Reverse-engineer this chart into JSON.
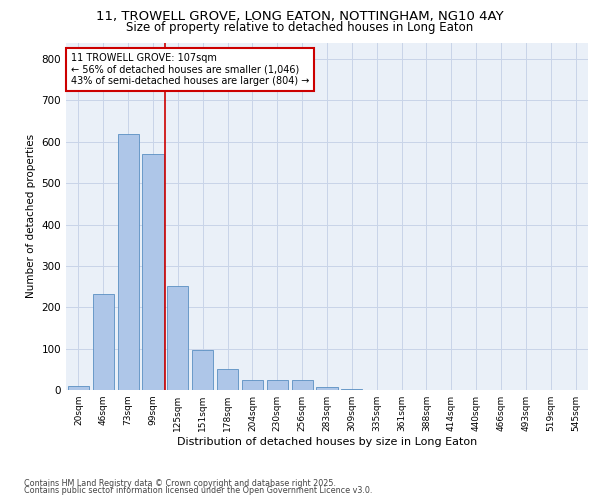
{
  "title": "11, TROWELL GROVE, LONG EATON, NOTTINGHAM, NG10 4AY",
  "subtitle": "Size of property relative to detached houses in Long Eaton",
  "xlabel": "Distribution of detached houses by size in Long Eaton",
  "ylabel": "Number of detached properties",
  "bar_categories": [
    "20sqm",
    "46sqm",
    "73sqm",
    "99sqm",
    "125sqm",
    "151sqm",
    "178sqm",
    "204sqm",
    "230sqm",
    "256sqm",
    "283sqm",
    "309sqm",
    "335sqm",
    "361sqm",
    "388sqm",
    "414sqm",
    "440sqm",
    "466sqm",
    "493sqm",
    "519sqm",
    "545sqm"
  ],
  "bar_values": [
    10,
    232,
    618,
    570,
    252,
    97,
    50,
    23,
    23,
    23,
    7,
    2,
    0,
    0,
    0,
    0,
    0,
    0,
    0,
    0,
    0
  ],
  "bar_color": "#aec6e8",
  "bar_edge_color": "#5a8fc2",
  "grid_color": "#c8d4e8",
  "background_color": "#eaf0f8",
  "vline_x": 3.5,
  "vline_color": "#cc0000",
  "annotation_text": "11 TROWELL GROVE: 107sqm\n← 56% of detached houses are smaller (1,046)\n43% of semi-detached houses are larger (804) →",
  "annotation_box_color": "#ffffff",
  "annotation_box_edge": "#cc0000",
  "ylim": [
    0,
    840
  ],
  "yticks": [
    0,
    100,
    200,
    300,
    400,
    500,
    600,
    700,
    800
  ],
  "footer1": "Contains HM Land Registry data © Crown copyright and database right 2025.",
  "footer2": "Contains public sector information licensed under the Open Government Licence v3.0."
}
